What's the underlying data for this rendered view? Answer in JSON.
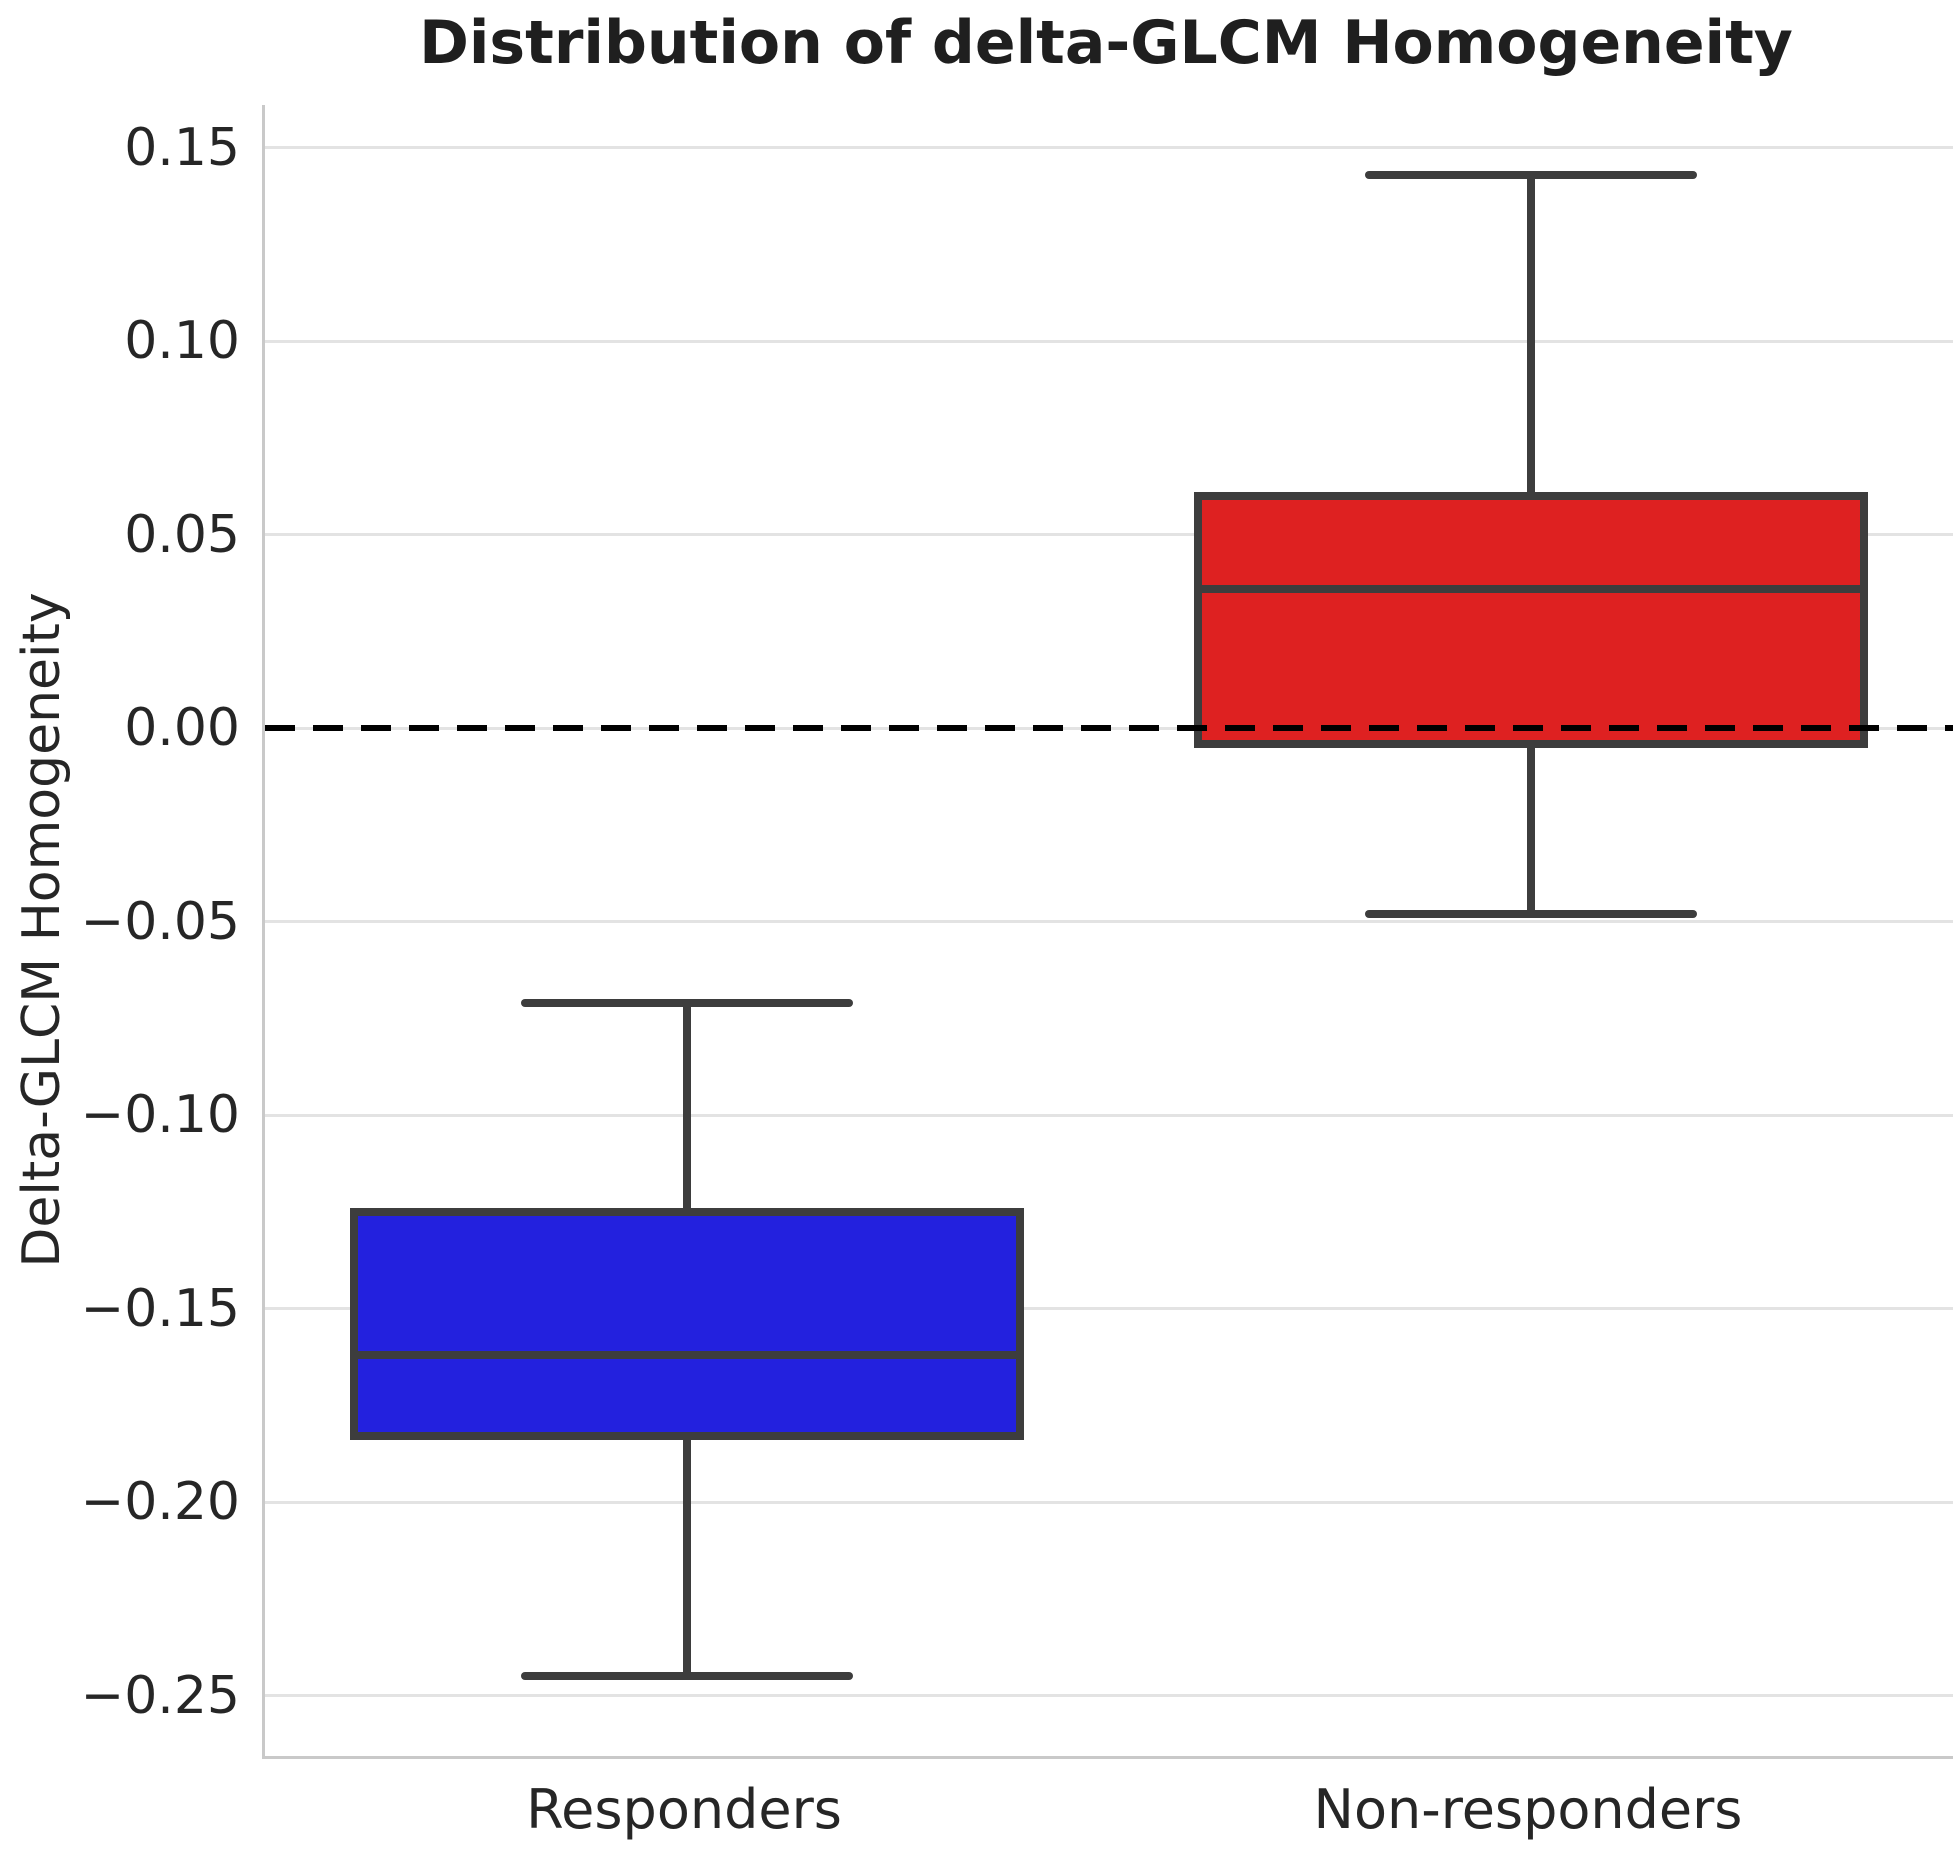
{
  "title": "Distribution of delta-GLCM Homogeneity",
  "chart_data": {
    "type": "box",
    "title": "Distribution of delta-GLCM Homogeneity",
    "xlabel": "",
    "ylabel": "Delta-GLCM Homogeneity",
    "categories": [
      "Responders",
      "Non-responders"
    ],
    "series": [
      {
        "name": "Responders",
        "whisker_low": -0.245,
        "q1": -0.183,
        "median": -0.162,
        "q3": -0.125,
        "whisker_high": -0.071,
        "fill_color": "#2321de"
      },
      {
        "name": "Non-responders",
        "whisker_low": -0.048,
        "q1": -0.004,
        "median": 0.036,
        "q3": 0.06,
        "whisker_high": 0.143,
        "fill_color": "#de2121"
      }
    ],
    "y_ticks": [
      0.15,
      0.1,
      0.05,
      0.0,
      -0.05,
      -0.1,
      -0.15,
      -0.2,
      -0.25
    ],
    "y_tick_labels": [
      "0.15",
      "0.10",
      "0.05",
      "0.00",
      "−0.05",
      "−0.10",
      "−0.15",
      "−0.20",
      "−0.25"
    ],
    "ylim": [
      -0.2656,
      0.161
    ],
    "reference_line_y": 0.0,
    "grid": true,
    "legend": "none",
    "colors": {
      "box_edge": "#3d3d3d",
      "whisker": "#3d3d3d",
      "median": "#3d3d3d",
      "gridline": "#e3e3e3",
      "spine": "#c9c9c9",
      "tick_text": "#262626",
      "reference_line": "#000000"
    }
  }
}
